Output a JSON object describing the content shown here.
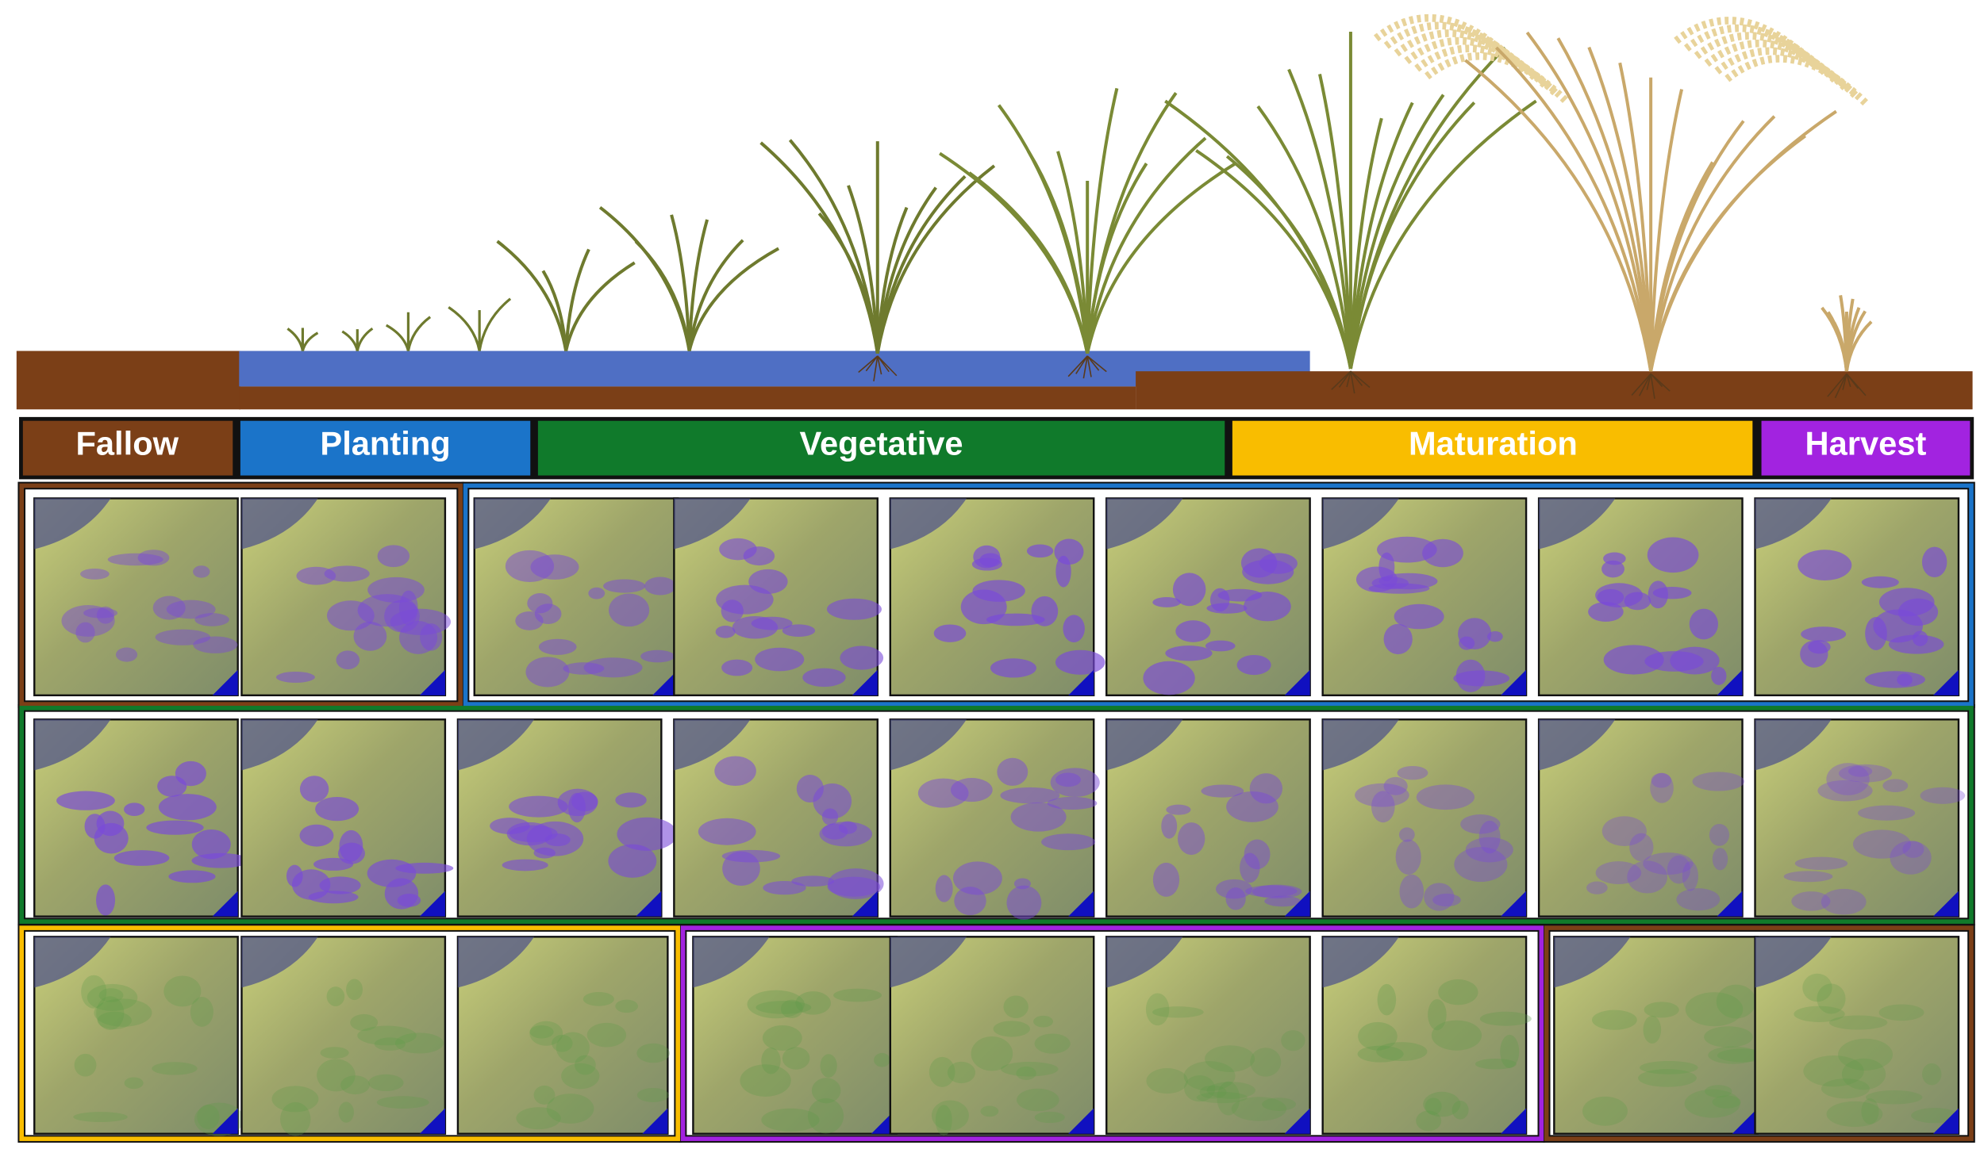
{
  "stages": [
    {
      "label": "Fallow"
    },
    {
      "label": "Planting"
    },
    {
      "label": "Vegetative"
    },
    {
      "label": "Maturation"
    },
    {
      "label": "Harvest"
    }
  ]
}
